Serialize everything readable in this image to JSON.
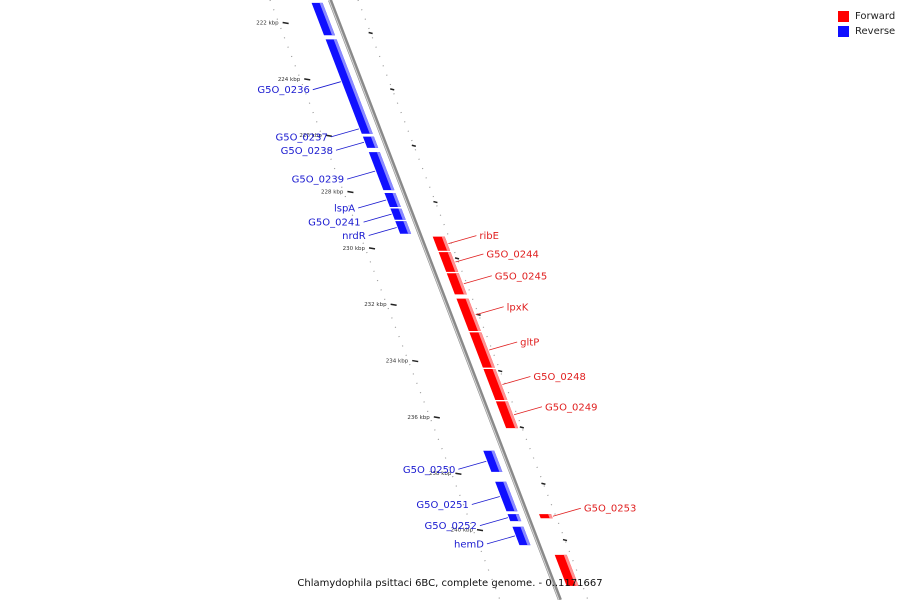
{
  "legend": {
    "forward_label": "Forward",
    "reverse_label": "Reverse",
    "forward_color": "#ff0000",
    "reverse_color": "#1010ff"
  },
  "caption": "Chlamydophila psittaci 6BC, complete genome. - 0..1171667",
  "colors": {
    "backbone": "#8a8a8a",
    "tick": "#222222",
    "dots": "#9a9a9a"
  },
  "ticks": [
    {
      "label": "222 kbp",
      "kbp": 222
    },
    {
      "label": "224 kbp",
      "kbp": 224
    },
    {
      "label": "226 kbp",
      "kbp": 226
    },
    {
      "label": "228 kbp",
      "kbp": 228
    },
    {
      "label": "230 kbp",
      "kbp": 230
    },
    {
      "label": "232 kbp",
      "kbp": 232
    },
    {
      "label": "234 kbp",
      "kbp": 234
    },
    {
      "label": "236 kbp",
      "kbp": 236
    },
    {
      "label": "238 kbp",
      "kbp": 238
    },
    {
      "label": "240 kbp",
      "kbp": 240
    }
  ],
  "genes": [
    {
      "label": "",
      "strand": "reverse",
      "start_kbp": 221.3,
      "end_kbp": 222.45
    },
    {
      "label": "G5O_0236",
      "strand": "reverse",
      "start_kbp": 222.6,
      "end_kbp": 225.6
    },
    {
      "label": "G5O_0237",
      "strand": "reverse",
      "start_kbp": 225.6,
      "end_kbp": 225.95
    },
    {
      "label": "G5O_0238",
      "strand": "reverse",
      "start_kbp": 226.05,
      "end_kbp": 226.45
    },
    {
      "label": "G5O_0239",
      "strand": "reverse",
      "start_kbp": 226.6,
      "end_kbp": 227.95
    },
    {
      "label": "lspA",
      "strand": "reverse",
      "start_kbp": 228.05,
      "end_kbp": 228.55
    },
    {
      "label": "G5O_0241",
      "strand": "reverse",
      "start_kbp": 228.6,
      "end_kbp": 229.0
    },
    {
      "label": "nrdR",
      "strand": "reverse",
      "start_kbp": 229.05,
      "end_kbp": 229.5
    },
    {
      "label": "ribE",
      "strand": "forward",
      "start_kbp": 229.6,
      "end_kbp": 230.1
    },
    {
      "label": "G5O_0244",
      "strand": "forward",
      "start_kbp": 230.15,
      "end_kbp": 230.85
    },
    {
      "label": "G5O_0245",
      "strand": "forward",
      "start_kbp": 230.9,
      "end_kbp": 231.65
    },
    {
      "label": "lpxK",
      "strand": "forward",
      "start_kbp": 231.8,
      "end_kbp": 232.95
    },
    {
      "label": "gltP",
      "strand": "forward",
      "start_kbp": 233.0,
      "end_kbp": 234.25
    },
    {
      "label": "G5O_0248",
      "strand": "forward",
      "start_kbp": 234.3,
      "end_kbp": 235.4
    },
    {
      "label": "G5O_0249",
      "strand": "forward",
      "start_kbp": 235.45,
      "end_kbp": 236.4
    },
    {
      "label": "G5O_0250",
      "strand": "reverse",
      "start_kbp": 237.2,
      "end_kbp": 237.95
    },
    {
      "label": "G5O_0251",
      "strand": "reverse",
      "start_kbp": 238.3,
      "end_kbp": 239.35
    },
    {
      "label": "G5O_0252",
      "strand": "reverse",
      "start_kbp": 239.45,
      "end_kbp": 239.7
    },
    {
      "label": "G5O_0253",
      "strand": "forward",
      "start_kbp": 239.45,
      "end_kbp": 239.6
    },
    {
      "label": "hemD",
      "strand": "reverse",
      "start_kbp": 239.9,
      "end_kbp": 240.55
    },
    {
      "label": "",
      "strand": "forward",
      "start_kbp": 240.9,
      "end_kbp": 242.0
    }
  ]
}
